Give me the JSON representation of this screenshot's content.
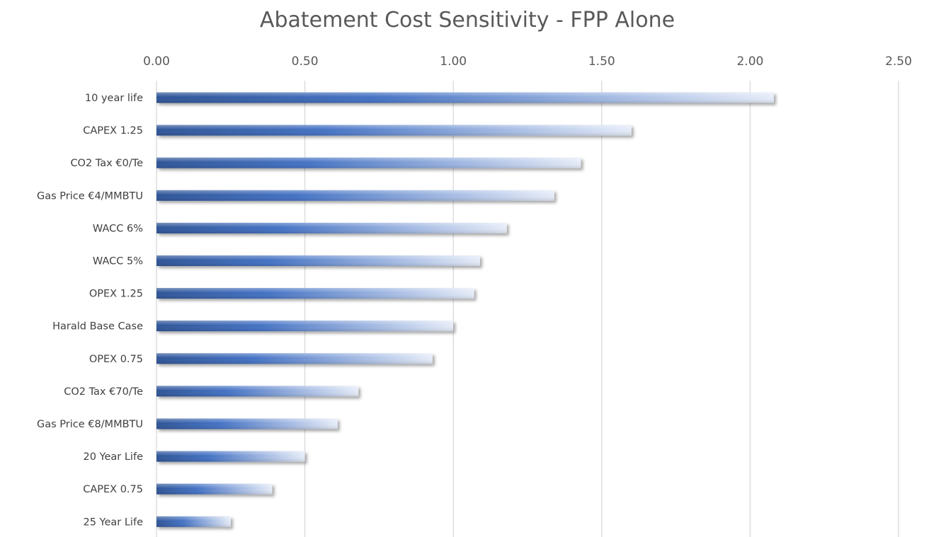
{
  "chart_data": {
    "type": "bar",
    "orientation": "horizontal",
    "title": "Abatement Cost Sensitivity - FPP Alone",
    "xlabel": "",
    "ylabel": "",
    "xlim": [
      0,
      2.5
    ],
    "x_ticks": [
      0,
      0.5,
      1.0,
      1.5,
      2.0,
      2.5
    ],
    "x_tick_labels": [
      "0.00",
      "0.50",
      "1.00",
      "1.50",
      "2.00",
      "2.50"
    ],
    "x_axis_position": "top",
    "grid": true,
    "legend": "none",
    "categories": [
      "10 year life",
      "CAPEX 1.25",
      "CO2 Tax €0/Te",
      "Gas Price €4/MMBTU",
      "WACC 6%",
      "WACC 5%",
      "OPEX 1.25",
      "Harald Base Case",
      "OPEX 0.75",
      "CO2 Tax €70/Te",
      "Gas Price €8/MMBTU",
      "20 Year Life",
      "CAPEX 0.75",
      "25 Year Life"
    ],
    "values": [
      2.08,
      1.6,
      1.43,
      1.34,
      1.18,
      1.09,
      1.07,
      1.0,
      0.93,
      0.68,
      0.61,
      0.5,
      0.39,
      0.25
    ],
    "colors": {
      "bar_dark": "#2f5597",
      "bar_mid": "#4472c4",
      "bar_light": "#e6ecf8",
      "grid": "#d9d9d9",
      "text": "#595959"
    }
  }
}
